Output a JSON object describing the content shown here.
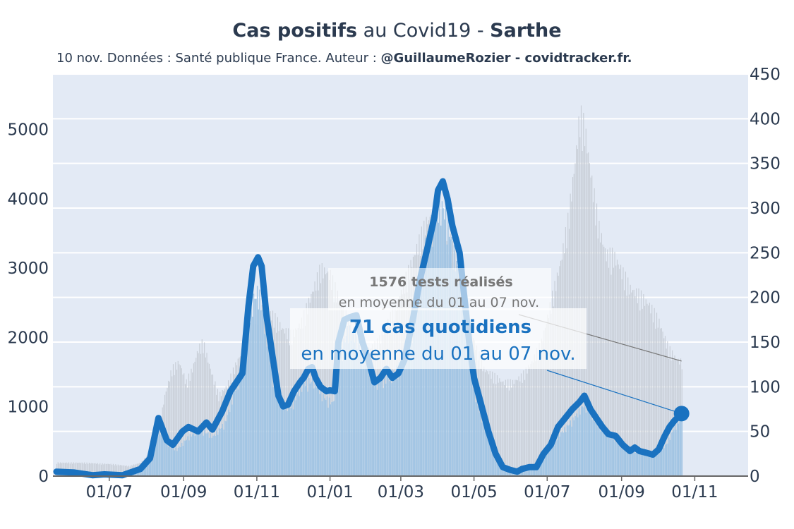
{
  "title": {
    "part1": "Cas positifs",
    "part2": " au Covid19 - ",
    "part3": "Sarthe"
  },
  "subtitle": {
    "text": "10 nov. Données : Santé publique France. Auteur : ",
    "bold": "@GuillaumeRozier - covidtracker.fr."
  },
  "colors": {
    "plot_bg": "#e3eaf5",
    "line": "#1a72c0",
    "cases_bar": "#9ec3e3",
    "tests_bar": "#c6ccd5",
    "annotation_tests": "#777777",
    "annotation_cases": "#1a72c0"
  },
  "chart_data": {
    "type": "line",
    "x_tick_labels": [
      "01/07",
      "01/09",
      "01/11",
      "01/01",
      "01/03",
      "01/05",
      "01/07",
      "01/09",
      "01/11"
    ],
    "y_left": {
      "ticks": [
        0,
        1000,
        2000,
        3000,
        4000,
        5000
      ],
      "range": [
        0,
        5800
      ]
    },
    "y_right": {
      "ticks": [
        0,
        50,
        100,
        150,
        200,
        250,
        300,
        350,
        400,
        450
      ],
      "range": [
        0,
        450
      ]
    },
    "grid": true,
    "x_range": [
      0,
      570
    ],
    "x_tick_positions_days": [
      44,
      106,
      167,
      228,
      287,
      348,
      409,
      471,
      532
    ],
    "series": [
      {
        "axis": "right",
        "style": "line",
        "points": [
          [
            0,
            5
          ],
          [
            15,
            4
          ],
          [
            30,
            1
          ],
          [
            40,
            2
          ],
          [
            55,
            1
          ],
          [
            70,
            8
          ],
          [
            78,
            20
          ],
          [
            85,
            65
          ],
          [
            92,
            40
          ],
          [
            97,
            35
          ],
          [
            105,
            50
          ],
          [
            110,
            55
          ],
          [
            118,
            50
          ],
          [
            125,
            60
          ],
          [
            130,
            52
          ],
          [
            138,
            72
          ],
          [
            145,
            95
          ],
          [
            150,
            105
          ],
          [
            155,
            115
          ],
          [
            160,
            190
          ],
          [
            164,
            235
          ],
          [
            168,
            245
          ],
          [
            171,
            235
          ],
          [
            175,
            180
          ],
          [
            180,
            135
          ],
          [
            185,
            90
          ],
          [
            189,
            78
          ],
          [
            193,
            80
          ],
          [
            198,
            95
          ],
          [
            203,
            105
          ],
          [
            206,
            110
          ],
          [
            210,
            120
          ],
          [
            213,
            122
          ],
          [
            216,
            110
          ],
          [
            220,
            100
          ],
          [
            225,
            95
          ],
          [
            228,
            96
          ],
          [
            232,
            95
          ],
          [
            235,
            150
          ],
          [
            240,
            175
          ],
          [
            245,
            178
          ],
          [
            250,
            180
          ],
          [
            255,
            150
          ],
          [
            260,
            130
          ],
          [
            265,
            105
          ],
          [
            270,
            110
          ],
          [
            275,
            120
          ],
          [
            280,
            110
          ],
          [
            285,
            115
          ],
          [
            290,
            130
          ],
          [
            297,
            175
          ],
          [
            303,
            220
          ],
          [
            310,
            260
          ],
          [
            315,
            290
          ],
          [
            318,
            320
          ],
          [
            322,
            330
          ],
          [
            326,
            310
          ],
          [
            330,
            280
          ],
          [
            336,
            250
          ],
          [
            340,
            200
          ],
          [
            344,
            150
          ],
          [
            348,
            110
          ],
          [
            354,
            80
          ],
          [
            360,
            50
          ],
          [
            366,
            25
          ],
          [
            372,
            10
          ],
          [
            378,
            7
          ],
          [
            384,
            5
          ],
          [
            388,
            8
          ],
          [
            394,
            10
          ],
          [
            400,
            10
          ],
          [
            406,
            25
          ],
          [
            412,
            35
          ],
          [
            418,
            55
          ],
          [
            424,
            65
          ],
          [
            430,
            75
          ],
          [
            436,
            83
          ],
          [
            440,
            90
          ],
          [
            445,
            75
          ],
          [
            450,
            65
          ],
          [
            455,
            55
          ],
          [
            460,
            47
          ],
          [
            466,
            45
          ],
          [
            472,
            35
          ],
          [
            478,
            28
          ],
          [
            482,
            32
          ],
          [
            486,
            28
          ],
          [
            492,
            26
          ],
          [
            497,
            24
          ],
          [
            502,
            30
          ],
          [
            507,
            45
          ],
          [
            511,
            55
          ],
          [
            515,
            62
          ],
          [
            521,
            70
          ]
        ]
      },
      {
        "axis": "left",
        "style": "bars",
        "description": "positive cases, daily bars",
        "points": [
          [
            0,
            50
          ],
          [
            30,
            30
          ],
          [
            60,
            30
          ],
          [
            75,
            200
          ],
          [
            85,
            700
          ],
          [
            92,
            500
          ],
          [
            100,
            400
          ],
          [
            110,
            600
          ],
          [
            120,
            700
          ],
          [
            130,
            600
          ],
          [
            140,
            800
          ],
          [
            150,
            1400
          ],
          [
            157,
            1800
          ],
          [
            162,
            2600
          ],
          [
            168,
            2800
          ],
          [
            175,
            2100
          ],
          [
            180,
            1500
          ],
          [
            188,
            1100
          ],
          [
            195,
            1050
          ],
          [
            205,
            1400
          ],
          [
            215,
            1450
          ],
          [
            222,
            1200
          ],
          [
            230,
            1100
          ],
          [
            236,
            1800
          ],
          [
            242,
            2200
          ],
          [
            250,
            2100
          ],
          [
            258,
            1700
          ],
          [
            265,
            1450
          ],
          [
            272,
            1450
          ],
          [
            280,
            1550
          ],
          [
            290,
            1750
          ],
          [
            298,
            2400
          ],
          [
            305,
            3300
          ],
          [
            312,
            3800
          ],
          [
            318,
            4100
          ],
          [
            324,
            4000
          ],
          [
            330,
            3400
          ],
          [
            336,
            3000
          ],
          [
            344,
            1700
          ],
          [
            350,
            1100
          ],
          [
            358,
            700
          ],
          [
            365,
            250
          ],
          [
            372,
            150
          ],
          [
            380,
            100
          ],
          [
            390,
            100
          ],
          [
            400,
            200
          ],
          [
            410,
            450
          ],
          [
            420,
            650
          ],
          [
            430,
            850
          ],
          [
            436,
            1000
          ],
          [
            440,
            1100
          ],
          [
            445,
            950
          ],
          [
            452,
            750
          ],
          [
            460,
            650
          ],
          [
            468,
            500
          ],
          [
            476,
            400
          ],
          [
            484,
            380
          ],
          [
            492,
            350
          ],
          [
            500,
            350
          ],
          [
            508,
            480
          ],
          [
            515,
            750
          ],
          [
            521,
            900
          ]
        ]
      },
      {
        "axis": "left",
        "style": "bars",
        "description": "tests, daily bars",
        "points": [
          [
            0,
            200
          ],
          [
            20,
            200
          ],
          [
            45,
            180
          ],
          [
            60,
            150
          ],
          [
            70,
            200
          ],
          [
            78,
            350
          ],
          [
            85,
            700
          ],
          [
            90,
            1200
          ],
          [
            96,
            1600
          ],
          [
            102,
            1700
          ],
          [
            108,
            1400
          ],
          [
            113,
            1600
          ],
          [
            118,
            1900
          ],
          [
            122,
            2000
          ],
          [
            128,
            1600
          ],
          [
            135,
            1200
          ],
          [
            142,
            1350
          ],
          [
            150,
            1700
          ],
          [
            158,
            2000
          ],
          [
            165,
            2300
          ],
          [
            172,
            2500
          ],
          [
            180,
            2400
          ],
          [
            188,
            2200
          ],
          [
            196,
            2100
          ],
          [
            204,
            2300
          ],
          [
            212,
            2700
          ],
          [
            220,
            3100
          ],
          [
            228,
            3000
          ],
          [
            236,
            2600
          ],
          [
            244,
            2300
          ],
          [
            252,
            2000
          ],
          [
            260,
            1900
          ],
          [
            268,
            2000
          ],
          [
            276,
            2300
          ],
          [
            284,
            2600
          ],
          [
            292,
            3000
          ],
          [
            300,
            3400
          ],
          [
            308,
            3800
          ],
          [
            316,
            3900
          ],
          [
            324,
            3700
          ],
          [
            332,
            3300
          ],
          [
            340,
            2600
          ],
          [
            348,
            2000
          ],
          [
            356,
            1600
          ],
          [
            364,
            1500
          ],
          [
            372,
            1400
          ],
          [
            380,
            1400
          ],
          [
            388,
            1500
          ],
          [
            396,
            1700
          ],
          [
            404,
            2000
          ],
          [
            412,
            2600
          ],
          [
            420,
            3200
          ],
          [
            426,
            3800
          ],
          [
            432,
            4700
          ],
          [
            436,
            5400
          ],
          [
            440,
            5200
          ],
          [
            446,
            4400
          ],
          [
            452,
            3700
          ],
          [
            458,
            3300
          ],
          [
            464,
            3300
          ],
          [
            470,
            3100
          ],
          [
            478,
            2800
          ],
          [
            486,
            2700
          ],
          [
            494,
            2550
          ],
          [
            502,
            2300
          ],
          [
            510,
            1900
          ],
          [
            516,
            1750
          ],
          [
            521,
            1700
          ]
        ]
      }
    ],
    "last_point_value": 71,
    "annotations": {
      "tests_value": "1576 tests réalisés",
      "tests_period": "en moyenne du 01 au 07 nov.",
      "cases_value": "71 cas quotidiens",
      "cases_period": "en moyenne du 01 au 07 nov."
    }
  }
}
